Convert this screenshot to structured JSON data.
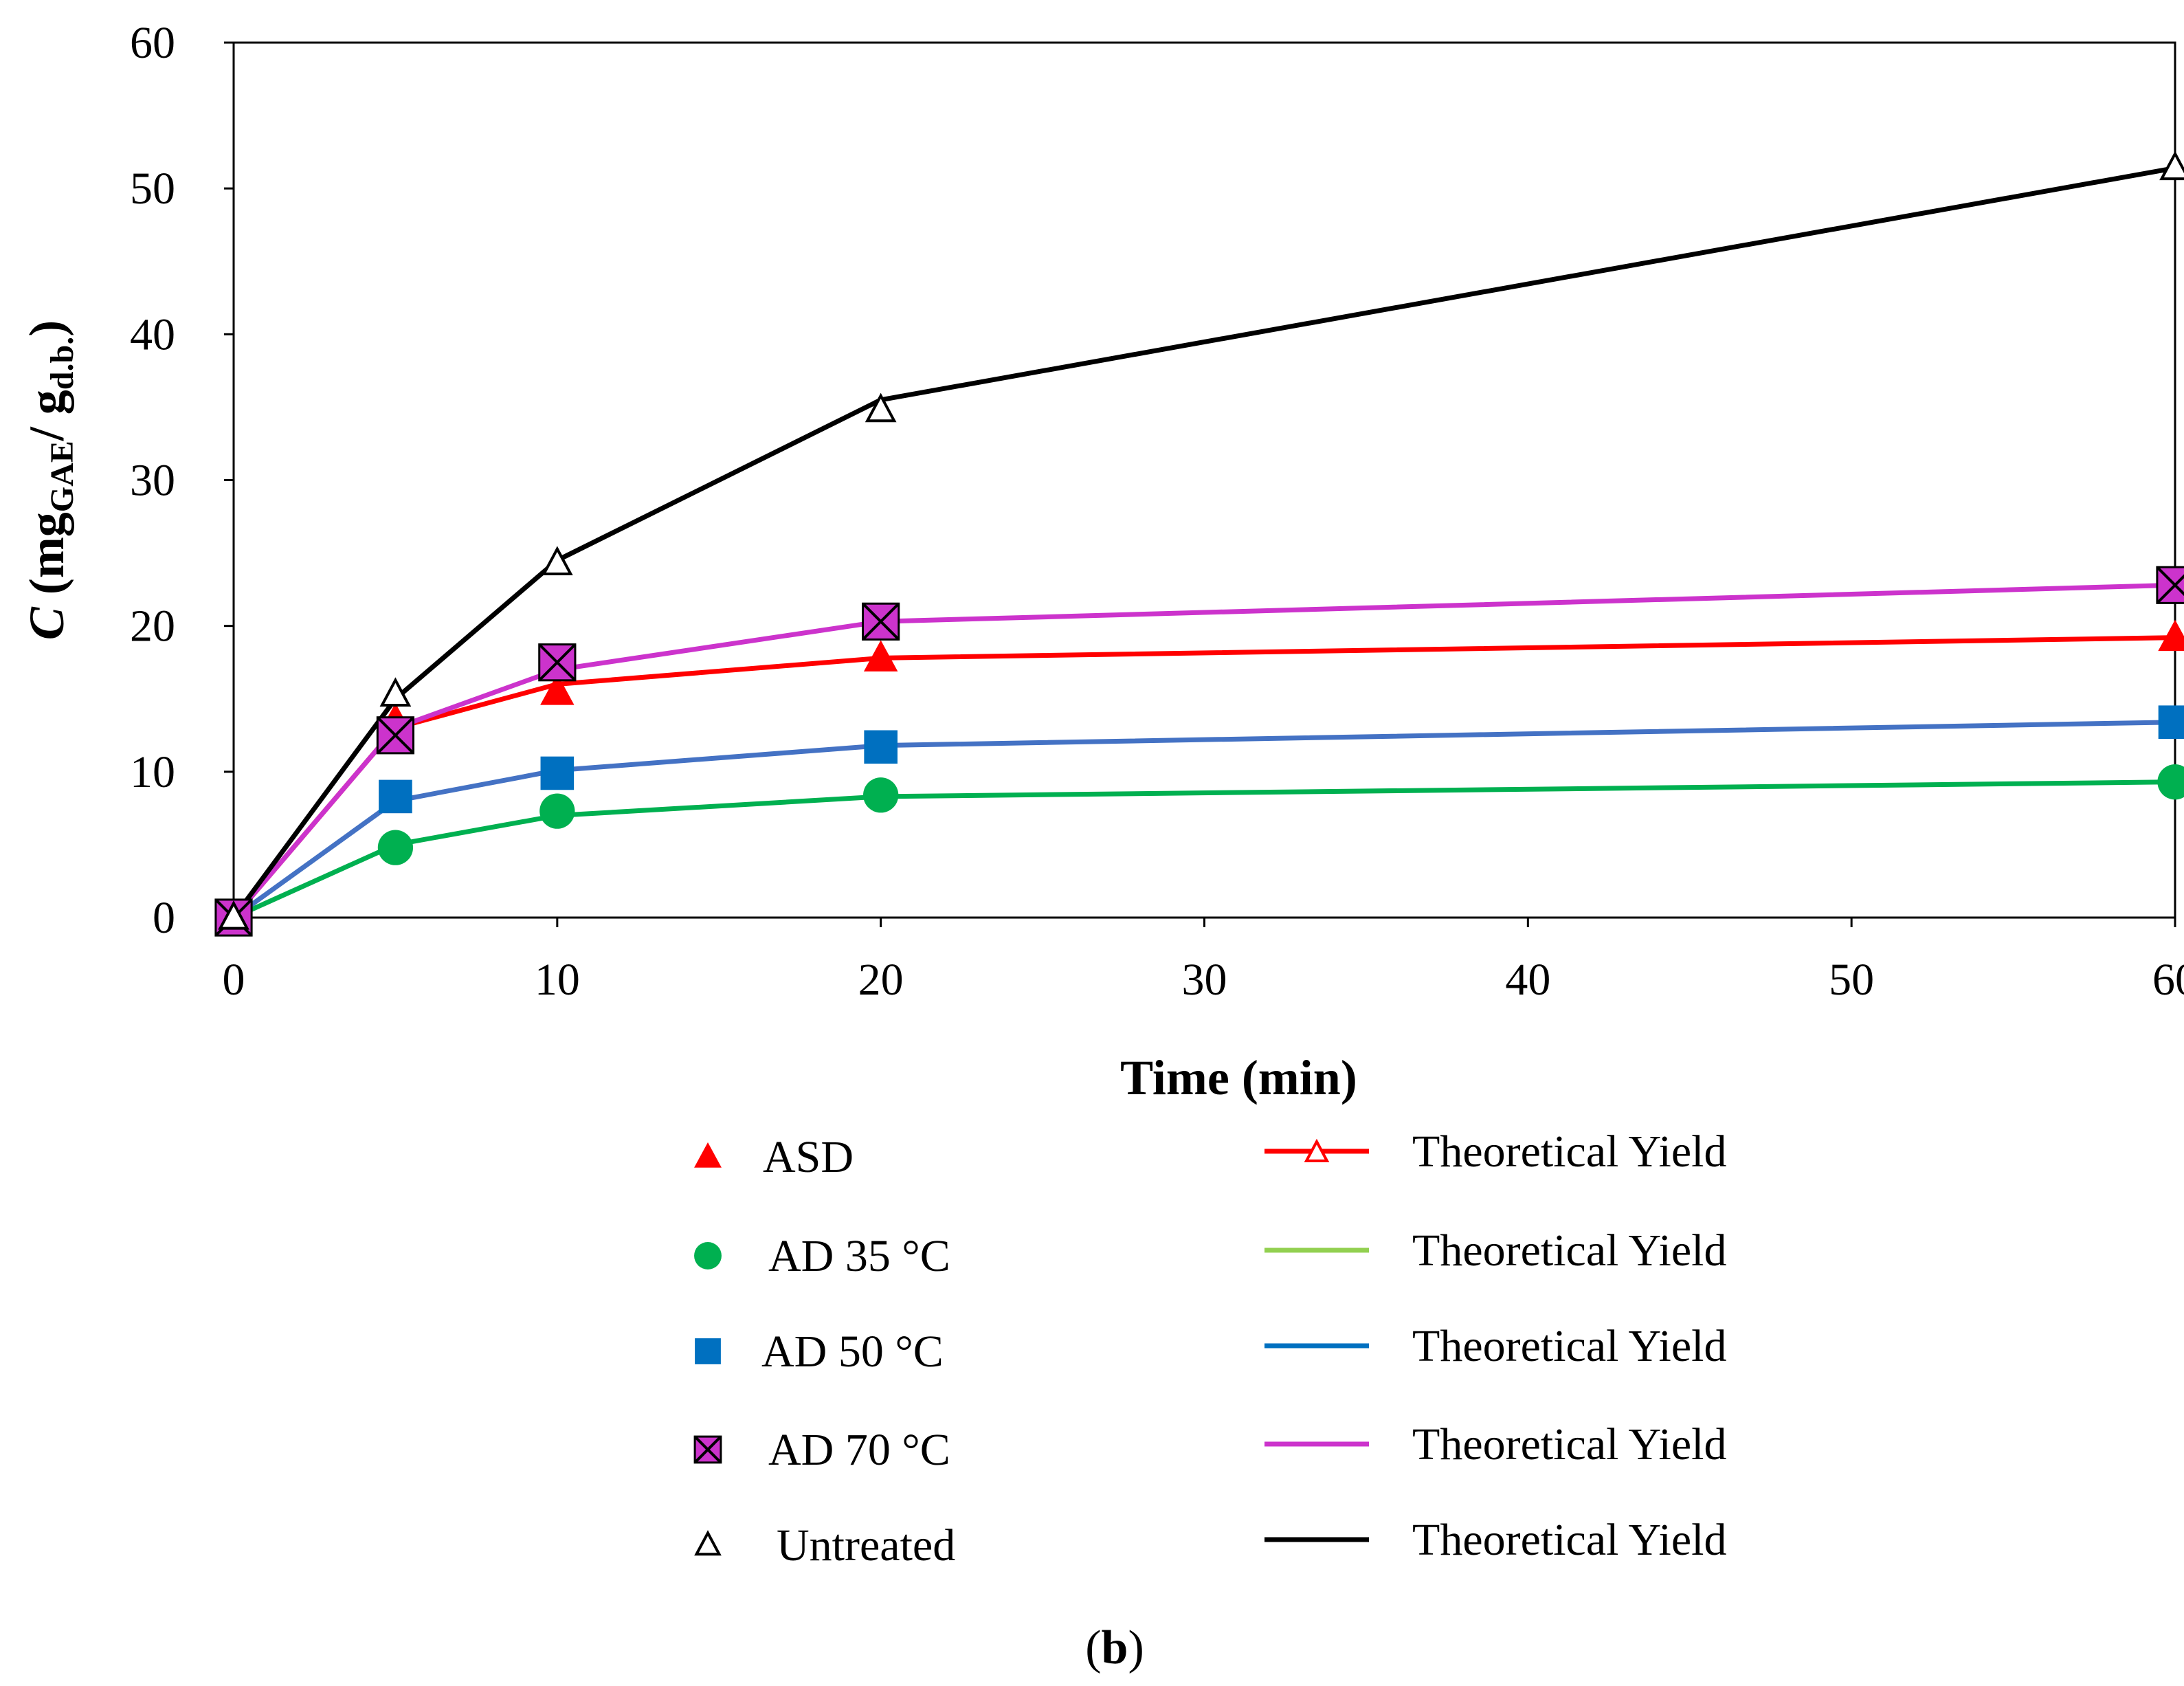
{
  "chart_data": {
    "type": "line",
    "title": "",
    "xlabel": "Time (min)",
    "ylabel_parts": {
      "symbol": "C",
      "open": " (mg",
      "sub1": "GAE",
      "slash": "/ g",
      "sub2": "d.b.",
      "close": ")"
    },
    "xlim": [
      0,
      60
    ],
    "ylim": [
      0,
      60
    ],
    "xticks": [
      0,
      10,
      20,
      30,
      40,
      50,
      60
    ],
    "yticks": [
      0,
      10,
      20,
      30,
      40,
      50,
      60
    ],
    "grid": false,
    "x": [
      0,
      5,
      10,
      20,
      60
    ],
    "series": [
      {
        "name": "ASD",
        "marker": "triangle",
        "marker_color": "#ff0000",
        "measured": [
          0,
          13.5,
          15.5,
          17.8,
          19.2
        ],
        "fit_name": "Theoretical Yield",
        "line_color": "#ff0000",
        "legend_line_marker": "open-triangle",
        "fit": [
          0,
          13.0,
          16.0,
          17.8,
          19.2
        ]
      },
      {
        "name": "AD 35 °C",
        "marker": "circle",
        "marker_color": "#00b050",
        "measured": [
          0,
          4.8,
          7.3,
          8.4,
          9.3
        ],
        "fit_name": "Theoretical Yield",
        "line_color": "#00b050",
        "legend_line_color": "#92d050",
        "fit": [
          0,
          5.0,
          7.0,
          8.3,
          9.3
        ]
      },
      {
        "name": "AD 50 °C",
        "marker": "square",
        "marker_color": "#0070c0",
        "measured": [
          0,
          8.3,
          9.9,
          11.7,
          13.4
        ],
        "fit_name": "Theoretical Yield",
        "line_color": "#4472c4",
        "legend_line_color": "#0070c0",
        "fit": [
          0,
          8.0,
          10.1,
          11.8,
          13.4
        ]
      },
      {
        "name": "AD 70 °C",
        "marker": "boxed-x",
        "marker_color": "#cc33cc",
        "measured": [
          0,
          12.5,
          17.5,
          20.3,
          22.8
        ],
        "fit_name": "Theoretical Yield",
        "line_color": "#cc33cc",
        "fit": [
          0,
          13.0,
          17.0,
          20.3,
          22.8
        ]
      },
      {
        "name": "Untreated",
        "marker": "open-triangle",
        "marker_color": "#000000",
        "measured": [
          0,
          15.3,
          24.3,
          34.8,
          51.4
        ],
        "fit_name": "Theoretical Yield",
        "line_color": "#000000",
        "fit": [
          0,
          15.0,
          24.5,
          35.5,
          51.4
        ]
      }
    ]
  },
  "caption": {
    "open": "(",
    "letter": "b",
    "close": ")"
  }
}
